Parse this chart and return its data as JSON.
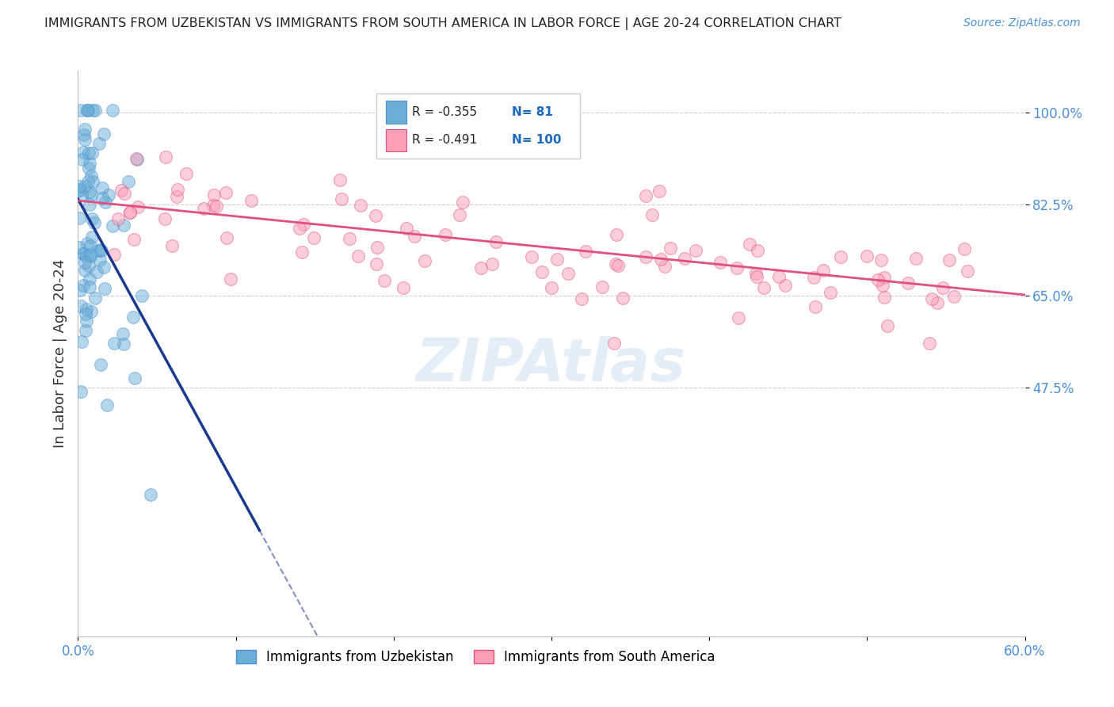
{
  "title": "IMMIGRANTS FROM UZBEKISTAN VS IMMIGRANTS FROM SOUTH AMERICA IN LABOR FORCE | AGE 20-24 CORRELATION CHART",
  "source": "Source: ZipAtlas.com",
  "ylabel": "In Labor Force | Age 20-24",
  "xmin": 0.0,
  "xmax": 0.6,
  "ymin": 0.0,
  "ymax": 1.08,
  "yticks": [
    0.475,
    0.65,
    0.825,
    1.0
  ],
  "ytick_labels": [
    "47.5%",
    "65.0%",
    "82.5%",
    "100.0%"
  ],
  "xticks": [
    0.0,
    0.1,
    0.2,
    0.3,
    0.4,
    0.5,
    0.6
  ],
  "xtick_labels": [
    "0.0%",
    "",
    "",
    "",
    "",
    "",
    "60.0%"
  ],
  "legend_r_blue": "-0.355",
  "legend_n_blue": "81",
  "legend_r_pink": "-0.491",
  "legend_n_pink": "100",
  "blue_color": "#6BAED6",
  "blue_edge_color": "#4A90D9",
  "pink_color": "#FA9FB5",
  "pink_edge_color": "#E05080",
  "trendline_blue_color": "#1A3A8F",
  "trendline_pink_color": "#E05080",
  "background_color": "#FFFFFF",
  "grid_color": "#CCCCCC",
  "watermark": "ZIPAtlas",
  "tick_color": "#4A90D9",
  "title_color": "#222222",
  "source_color": "#4A90D9",
  "ylabel_color": "#333333",
  "blue_trendline_x0": 0.0,
  "blue_trendline_y0": 0.835,
  "blue_trendline_slope": -5.5,
  "blue_trendline_solid_end": 0.115,
  "blue_trendline_dashed_end": 0.215,
  "pink_trendline_x0": 0.0,
  "pink_trendline_y0": 0.832,
  "pink_trendline_slope": -0.3,
  "pink_trendline_end": 0.6
}
